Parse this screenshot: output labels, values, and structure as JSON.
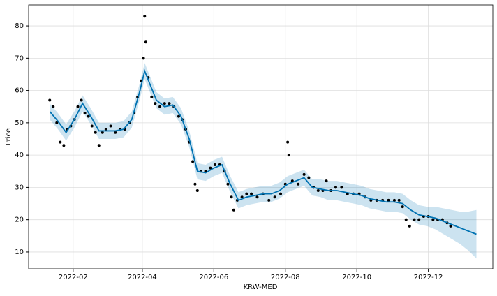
{
  "chart_data": {
    "type": "forecast",
    "x_label": "KRW-MED",
    "y_label": "Price",
    "xlim": [
      "2021-12-25",
      "2023-01-25"
    ],
    "xticks": [
      {
        "value": "2022-02-01",
        "label": "2022-02"
      },
      {
        "value": "2022-04-01",
        "label": "2022-04"
      },
      {
        "value": "2022-06-01",
        "label": "2022-06"
      },
      {
        "value": "2022-08-01",
        "label": "2022-08"
      },
      {
        "value": "2022-10-01",
        "label": "2022-10"
      },
      {
        "value": "2022-12-01",
        "label": "2022-12"
      }
    ],
    "ylim": [
      4.8,
      86.5
    ],
    "yticks": [
      10,
      20,
      30,
      40,
      50,
      60,
      70,
      80
    ],
    "grid": true,
    "observed": {
      "color": "#000000",
      "x": [
        "2022-01-12",
        "2022-01-15",
        "2022-01-18",
        "2022-01-21",
        "2022-01-24",
        "2022-01-27",
        "2022-01-30",
        "2022-02-02",
        "2022-02-05",
        "2022-02-08",
        "2022-02-11",
        "2022-02-14",
        "2022-02-17",
        "2022-02-20",
        "2022-02-23",
        "2022-02-26",
        "2022-03-01",
        "2022-03-05",
        "2022-03-09",
        "2022-03-13",
        "2022-03-17",
        "2022-03-21",
        "2022-03-25",
        "2022-03-28",
        "2022-03-31",
        "2022-04-02",
        "2022-04-03",
        "2022-04-04",
        "2022-04-06",
        "2022-04-09",
        "2022-04-12",
        "2022-04-16",
        "2022-04-20",
        "2022-04-24",
        "2022-04-28",
        "2022-05-02",
        "2022-05-05",
        "2022-05-08",
        "2022-05-11",
        "2022-05-14",
        "2022-05-16",
        "2022-05-18",
        "2022-05-21",
        "2022-05-25",
        "2022-05-29",
        "2022-06-02",
        "2022-06-06",
        "2022-06-10",
        "2022-06-13",
        "2022-06-16",
        "2022-06-18",
        "2022-06-21",
        "2022-06-25",
        "2022-06-29",
        "2022-07-03",
        "2022-07-08",
        "2022-07-13",
        "2022-07-18",
        "2022-07-23",
        "2022-07-28",
        "2022-08-01",
        "2022-08-03",
        "2022-08-04",
        "2022-08-07",
        "2022-08-12",
        "2022-08-17",
        "2022-08-21",
        "2022-08-25",
        "2022-08-29",
        "2022-09-02",
        "2022-09-05",
        "2022-09-09",
        "2022-09-13",
        "2022-09-18",
        "2022-09-23",
        "2022-09-28",
        "2022-10-03",
        "2022-10-08",
        "2022-10-13",
        "2022-10-18",
        "2022-10-23",
        "2022-10-28",
        "2022-11-02",
        "2022-11-06",
        "2022-11-09",
        "2022-11-12",
        "2022-11-15",
        "2022-11-19",
        "2022-11-23",
        "2022-11-27",
        "2022-12-01",
        "2022-12-05",
        "2022-12-09",
        "2022-12-13",
        "2022-12-17",
        "2022-12-20"
      ],
      "values": [
        57,
        55,
        50,
        44,
        43,
        48,
        49,
        51,
        55,
        57,
        53,
        52,
        49,
        47,
        43,
        47,
        48,
        49,
        47,
        48,
        48,
        50,
        53,
        58,
        63,
        70,
        83,
        75,
        64,
        58,
        56,
        55,
        56,
        56,
        55,
        52,
        51,
        48,
        44,
        38,
        31,
        29,
        35,
        35,
        36,
        37,
        37,
        35,
        31,
        27,
        23,
        26,
        27,
        28,
        28,
        27,
        28,
        26,
        27,
        28,
        31,
        44,
        40,
        32,
        31,
        34,
        33,
        30,
        29,
        29,
        32,
        29,
        30,
        30,
        28,
        28,
        28,
        27,
        26,
        26,
        26,
        26,
        26,
        26,
        24,
        20,
        18,
        20,
        20,
        21,
        21,
        20,
        20,
        20,
        19,
        18
      ]
    },
    "forecast": {
      "color": "#0072B2",
      "x": [
        "2022-01-12",
        "2022-01-19",
        "2022-01-26",
        "2022-02-02",
        "2022-02-09",
        "2022-02-16",
        "2022-02-23",
        "2022-03-02",
        "2022-03-09",
        "2022-03-16",
        "2022-03-23",
        "2022-03-30",
        "2022-04-03",
        "2022-04-13",
        "2022-04-20",
        "2022-04-27",
        "2022-05-04",
        "2022-05-11",
        "2022-05-18",
        "2022-05-25",
        "2022-06-01",
        "2022-06-08",
        "2022-06-15",
        "2022-06-22",
        "2022-06-29",
        "2022-07-06",
        "2022-07-13",
        "2022-07-20",
        "2022-07-27",
        "2022-08-03",
        "2022-08-10",
        "2022-08-17",
        "2022-08-24",
        "2022-08-31",
        "2022-09-07",
        "2022-09-14",
        "2022-09-21",
        "2022-09-28",
        "2022-10-05",
        "2022-10-12",
        "2022-10-19",
        "2022-10-26",
        "2022-11-02",
        "2022-11-09",
        "2022-11-16",
        "2022-11-23",
        "2022-11-30",
        "2022-12-07",
        "2022-12-14",
        "2022-12-21",
        "2022-12-28",
        "2023-01-04",
        "2023-01-11"
      ],
      "values": [
        53.5,
        50.5,
        47,
        51,
        56,
        52,
        47.5,
        47.5,
        47.5,
        48,
        51,
        60,
        66,
        57,
        55,
        55.5,
        52,
        45,
        35,
        34.5,
        36,
        37,
        31,
        26,
        27,
        27.5,
        28,
        28,
        29,
        31,
        32,
        33,
        30,
        29.5,
        29,
        29,
        28.5,
        28,
        27.5,
        26.5,
        26,
        25.5,
        25.5,
        25,
        23,
        21.5,
        21,
        20.5,
        19.5,
        18.5,
        17.5,
        16.5,
        15.5
      ],
      "lower": [
        51,
        48,
        44.5,
        48.5,
        53.5,
        49.5,
        45,
        45,
        45,
        45.5,
        48.5,
        57.5,
        63.5,
        54.5,
        52.5,
        53,
        49.5,
        42.5,
        32.5,
        32,
        33.5,
        34.5,
        28.5,
        23.5,
        24.5,
        25,
        25.5,
        25.5,
        26.5,
        28.5,
        29.5,
        30.5,
        27.5,
        27,
        26,
        26,
        25.5,
        25,
        24.5,
        23.5,
        23,
        22.5,
        22.5,
        22,
        20,
        18.5,
        18,
        17,
        15.5,
        14,
        12.5,
        10.5,
        8
      ],
      "upper": [
        56,
        53,
        49.5,
        53.5,
        58.5,
        54.5,
        50,
        50,
        50,
        50.5,
        53.5,
        62.5,
        68.5,
        59.5,
        57.5,
        58,
        54.5,
        47.5,
        37.5,
        37,
        38.5,
        39.5,
        33.5,
        28.5,
        29.5,
        30,
        30.5,
        30.5,
        31.5,
        33.5,
        34.5,
        35.5,
        32.5,
        32.5,
        32,
        32,
        31.5,
        31,
        30.5,
        29.5,
        29,
        28.5,
        28.5,
        28,
        26,
        24.5,
        24,
        24,
        23.5,
        23,
        22.5,
        22.5,
        23
      ]
    }
  }
}
